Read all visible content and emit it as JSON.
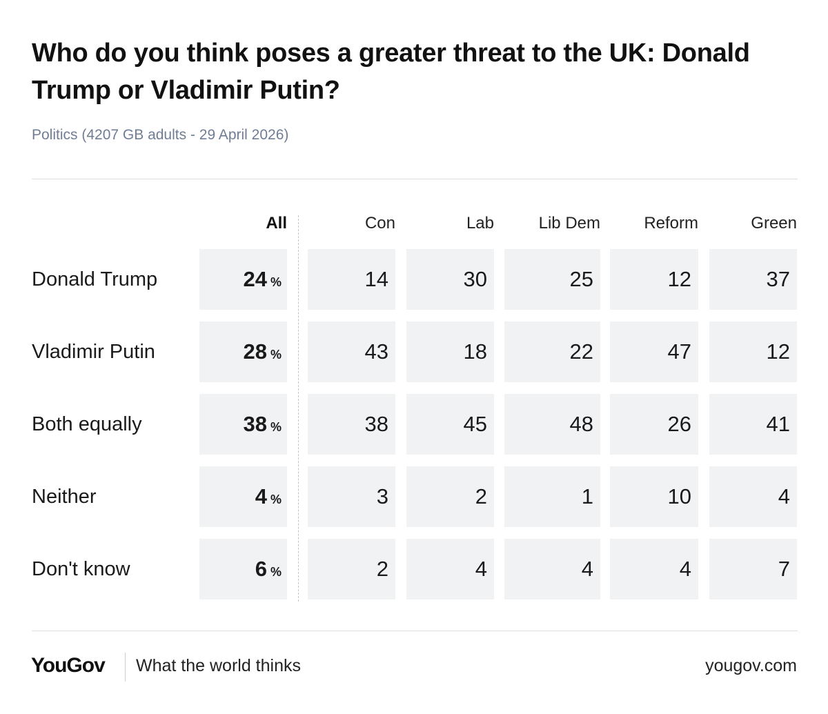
{
  "header": {
    "title": "Who do you think poses a greater threat to the UK: Donald Trump or Vladimir Putin?",
    "subtitle": "Politics (4207 GB adults - 29 April 2026)"
  },
  "footer": {
    "logo": "YouGov",
    "tagline": "What the world thinks",
    "url": "yougov.com"
  },
  "chart_data": {
    "type": "table",
    "title": "Who do you think poses a greater threat to the UK: Donald Trump or Vladimir Putin?",
    "subtitle": "Politics (4207 GB adults - 29 April 2026)",
    "unit_label": "%",
    "columns": [
      "All",
      "Con",
      "Lab",
      "Lib Dem",
      "Reform",
      "Green"
    ],
    "rows": [
      {
        "label": "Donald Trump",
        "values": [
          24,
          14,
          30,
          25,
          12,
          37
        ]
      },
      {
        "label": "Vladimir Putin",
        "values": [
          28,
          43,
          18,
          22,
          47,
          12
        ]
      },
      {
        "label": "Both equally",
        "values": [
          38,
          38,
          45,
          48,
          26,
          41
        ]
      },
      {
        "label": "Neither",
        "values": [
          4,
          3,
          2,
          1,
          10,
          4
        ]
      },
      {
        "label": "Don't know",
        "values": [
          6,
          2,
          4,
          4,
          4,
          7
        ]
      }
    ]
  }
}
